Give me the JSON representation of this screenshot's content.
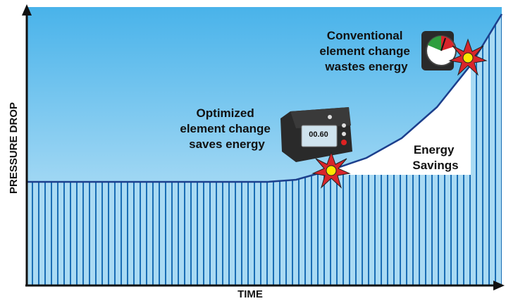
{
  "axes": {
    "y_label": "PRESSURE DROP",
    "x_label": "TIME"
  },
  "annotations": {
    "optimized": [
      "Optimized",
      "element change",
      "saves energy"
    ],
    "conventional": [
      "Conventional",
      "element change",
      "wastes energy"
    ],
    "savings": [
      "Energy",
      "Savings"
    ]
  },
  "device": {
    "display": "00.60"
  }
}
